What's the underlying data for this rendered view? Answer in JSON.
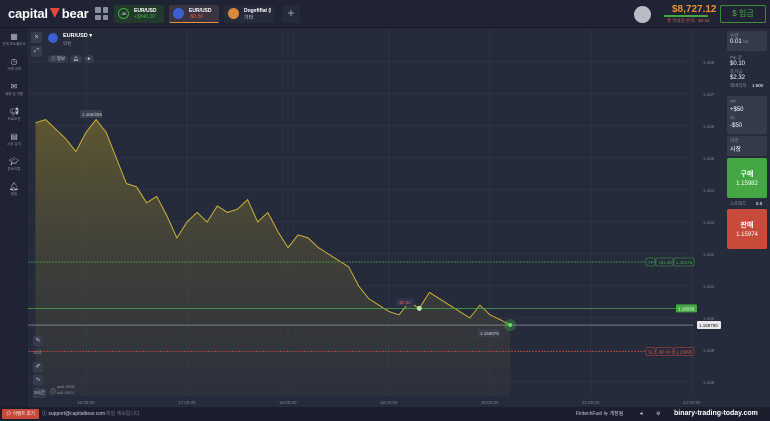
{
  "header": {
    "logo": "capital bear",
    "tabs": [
      {
        "name": "EUR/USD",
        "sub": "+$840.30",
        "timer": "-30",
        "sub_color": "#43a844"
      },
      {
        "name": "EUR/USD",
        "sub": "-$0.56",
        "sub_color": "#e05a4a"
      },
      {
        "name": "Dogefiflat (D...",
        "sub": "기타"
      }
    ],
    "balance": "$8,727.12",
    "pnl": "총 미실현 손익: -$0.56",
    "deposit": "입금"
  },
  "sidebar": {
    "items": [
      {
        "label": "전체 포트폴리오",
        "icon": "portfolio-icon"
      },
      {
        "label": "거래 내역",
        "icon": "clock-icon"
      },
      {
        "label": "채팅 및 지원",
        "icon": "chat-icon"
      },
      {
        "label": "프로모션",
        "icon": "megaphone-icon"
      },
      {
        "label": "시장 분석",
        "icon": "analysis-icon"
      },
      {
        "label": "튜토리얼",
        "icon": "education-icon"
      },
      {
        "label": "알림",
        "icon": "bell-icon"
      }
    ]
  },
  "asset": {
    "name": "EUR/USD",
    "type": "외환",
    "info": "정보"
  },
  "chart_tools": {
    "timeframe": "30초",
    "period": "3시간",
    "ask": "ask1.15982",
    "bid": "bid1.15974"
  },
  "chart": {
    "type": "line",
    "y_ticks": [
      "1.168",
      "1.167",
      "1.166",
      "1.165",
      "1.164",
      "1.163",
      "1.162",
      "1.161",
      "1.160",
      "1.159",
      "1.158"
    ],
    "x_ticks": [
      "16:00:00",
      "17:00:00",
      "18:00:00",
      "19:00:00",
      "20:00:00",
      "21:00:00",
      "22:00:00"
    ],
    "series": [
      [
        "15:30",
        1.1661
      ],
      [
        "15:36",
        1.1662
      ],
      [
        "15:42",
        1.1659
      ],
      [
        "15:48",
        1.1656
      ],
      [
        "15:54",
        1.1652
      ],
      [
        "16:00",
        1.1658
      ],
      [
        "16:06",
        1.1662
      ],
      [
        "16:12",
        1.1658
      ],
      [
        "16:18",
        1.165
      ],
      [
        "16:24",
        1.1642
      ],
      [
        "16:30",
        1.1641
      ],
      [
        "16:36",
        1.1636
      ],
      [
        "16:42",
        1.1638
      ],
      [
        "16:48",
        1.1632
      ],
      [
        "16:54",
        1.1625
      ],
      [
        "17:00",
        1.163
      ],
      [
        "17:06",
        1.1633
      ],
      [
        "17:12",
        1.163
      ],
      [
        "17:18",
        1.1635
      ],
      [
        "17:24",
        1.1633
      ],
      [
        "17:30",
        1.1634
      ],
      [
        "17:36",
        1.1637
      ],
      [
        "17:42",
        1.163
      ],
      [
        "17:48",
        1.1633
      ],
      [
        "17:54",
        1.1627
      ],
      [
        "18:00",
        1.1622
      ],
      [
        "18:06",
        1.1626
      ],
      [
        "18:12",
        1.1625
      ],
      [
        "18:18",
        1.1622
      ],
      [
        "18:24",
        1.162
      ],
      [
        "18:30",
        1.1618
      ],
      [
        "18:36",
        1.1616
      ],
      [
        "18:42",
        1.161
      ],
      [
        "18:48",
        1.1606
      ],
      [
        "18:54",
        1.1604
      ],
      [
        "19:00",
        1.1602
      ],
      [
        "19:06",
        1.1601
      ],
      [
        "19:12",
        1.1605
      ],
      [
        "19:18",
        1.1603
      ],
      [
        "19:24",
        1.1608
      ],
      [
        "19:30",
        1.1606
      ],
      [
        "19:36",
        1.1604
      ],
      [
        "19:42",
        1.1602
      ],
      [
        "19:48",
        1.16
      ],
      [
        "19:54",
        1.1604
      ],
      [
        "20:00",
        1.1601
      ],
      [
        "20:06",
        1.15995
      ],
      [
        "20:12",
        1.15978
      ]
    ],
    "high_label": "1.166/255",
    "low_label": "1.159675",
    "current_price": "1.159780",
    "entry_price": "1.16030",
    "entry_pnl": "-$0.56",
    "tp": {
      "tag": "TP",
      "pnl": "+$1.40",
      "price": "1.16175"
    },
    "sl": {
      "tag": "SL",
      "pnl": "-$0.34",
      "price": "1.15895"
    },
    "line_color": "#c9b23a",
    "entry_color": "#43a844",
    "sl_color": "#c74a3a"
  },
  "order": {
    "amount_label": "수량",
    "amount": "0.01",
    "amount_unit": "lot",
    "pip_label": "Pip 값",
    "pip": "$0.10",
    "margin_label": "증거금",
    "margin": "$2.32",
    "leverage_label": "레버리지",
    "leverage": "1:500",
    "tp_label": "TP",
    "tp": "+$50",
    "sl_label": "SL",
    "sl": "-$50",
    "price_label": "가격",
    "price": "시장",
    "buy_label": "구매",
    "buy_price": "1.15982",
    "spread_label": "스프레드",
    "spread": "0.8",
    "sell_label": "판매",
    "sell_price": "1.15974"
  },
  "footer": {
    "chat": "이벤트 후기",
    "email": "support@capitalbear.com",
    "status": "매일 계속됩니다",
    "news": "FintechFuel 뉴 개장됨",
    "watermark": "binary-trading-today.com"
  }
}
